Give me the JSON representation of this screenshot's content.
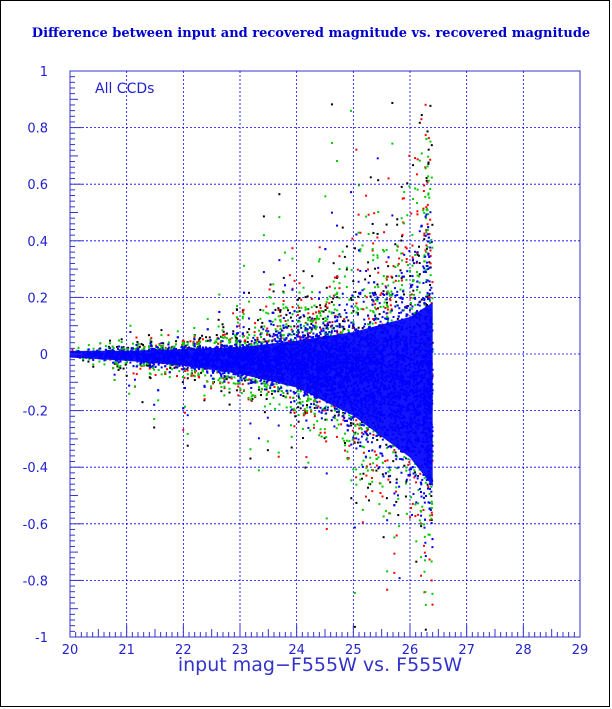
{
  "chart_data": {
    "type": "scatter",
    "title": "Difference between input and recovered magnitude vs. recovered magnitude",
    "xlabel": "input mag−F555W vs. F555W",
    "ylabel": "",
    "annotation": "All CCDs",
    "xlim": [
      20,
      29
    ],
    "ylim": [
      -1,
      1
    ],
    "x_ticks": [
      "20",
      "21",
      "22",
      "23",
      "24",
      "25",
      "26",
      "27",
      "28",
      "29"
    ],
    "y_ticks": [
      "1",
      "0.8",
      "0.6",
      "0.4",
      "0.2",
      "0",
      "-0.2",
      "-0.4",
      "-0.6",
      "-0.8",
      "-1"
    ],
    "grid": true,
    "x_cutoff": 26.4,
    "series": [
      {
        "color": "#0000ff",
        "envelope": [
          [
            20.0,
            0.02
          ],
          [
            21.0,
            0.03
          ],
          [
            22.0,
            0.05
          ],
          [
            23.0,
            0.08
          ],
          [
            24.0,
            0.14
          ],
          [
            25.0,
            0.25
          ],
          [
            26.0,
            0.42
          ],
          [
            26.4,
            0.55
          ]
        ],
        "bias": [
          [
            20.0,
            0.0
          ],
          [
            22.0,
            -0.01
          ],
          [
            24.0,
            -0.03
          ],
          [
            25.0,
            -0.06
          ],
          [
            26.0,
            -0.1
          ],
          [
            26.4,
            -0.12
          ]
        ]
      },
      {
        "color": "#00cc00",
        "envelope": [
          [
            20.0,
            0.04
          ],
          [
            21.0,
            0.05
          ],
          [
            22.0,
            0.08
          ],
          [
            23.0,
            0.13
          ],
          [
            24.0,
            0.22
          ],
          [
            25.0,
            0.38
          ],
          [
            26.0,
            0.6
          ],
          [
            26.4,
            0.75
          ]
        ],
        "bias": [
          [
            20.0,
            0.0
          ],
          [
            22.0,
            -0.01
          ],
          [
            24.0,
            -0.03
          ],
          [
            25.0,
            -0.05
          ],
          [
            26.0,
            -0.07
          ],
          [
            26.4,
            -0.08
          ]
        ]
      },
      {
        "color": "#ff0000",
        "envelope": [
          [
            20.0,
            0.04
          ],
          [
            21.0,
            0.05
          ],
          [
            22.0,
            0.09
          ],
          [
            23.0,
            0.14
          ],
          [
            24.0,
            0.24
          ],
          [
            25.0,
            0.42
          ],
          [
            26.0,
            0.68
          ],
          [
            26.4,
            0.85
          ]
        ],
        "bias": [
          [
            20.0,
            0.0
          ],
          [
            22.0,
            -0.01
          ],
          [
            24.0,
            -0.02
          ],
          [
            25.0,
            -0.04
          ],
          [
            26.0,
            -0.05
          ],
          [
            26.4,
            -0.06
          ]
        ]
      },
      {
        "color": "#000000",
        "envelope": [
          [
            20.0,
            0.05
          ],
          [
            21.0,
            0.06
          ],
          [
            22.0,
            0.1
          ],
          [
            23.0,
            0.15
          ],
          [
            24.0,
            0.26
          ],
          [
            25.0,
            0.45
          ],
          [
            26.0,
            0.7
          ],
          [
            26.4,
            0.85
          ]
        ],
        "bias": [
          [
            20.0,
            0.0
          ],
          [
            22.0,
            -0.01
          ],
          [
            24.0,
            -0.02
          ],
          [
            25.0,
            -0.04
          ],
          [
            26.0,
            -0.05
          ],
          [
            26.4,
            -0.06
          ]
        ]
      }
    ]
  }
}
